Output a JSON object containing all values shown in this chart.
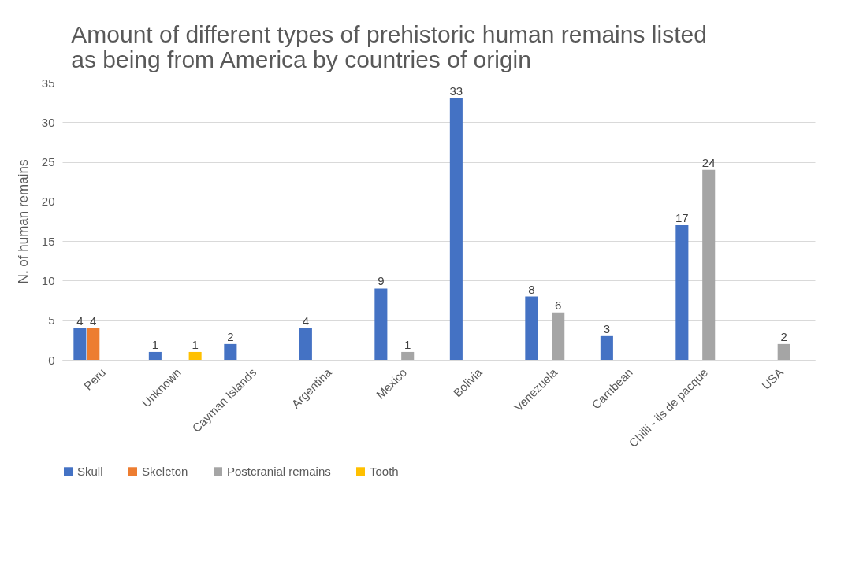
{
  "chart_data": {
    "type": "bar",
    "title": "Amount of different types of prehistoric human remains listed as being from America by countries of origin",
    "ylabel": "N. of human remains",
    "categories": [
      "Peru",
      "Unknown",
      "Cayman Islands",
      "Argentina",
      "Mexico",
      "Bolivia",
      "Venezuela",
      "Carribean",
      "Chilli - ils de pacque",
      "USA"
    ],
    "series": [
      {
        "name": "Skull",
        "color": "#4472c4",
        "values": [
          4,
          1,
          2,
          4,
          9,
          33,
          8,
          3,
          17,
          null
        ]
      },
      {
        "name": "Skeleton",
        "color": "#ed7d31",
        "values": [
          4,
          null,
          null,
          null,
          null,
          null,
          null,
          null,
          null,
          null
        ]
      },
      {
        "name": "Postcranial remains",
        "color": "#a5a5a5",
        "values": [
          null,
          null,
          null,
          null,
          1,
          null,
          6,
          null,
          24,
          2
        ]
      },
      {
        "name": "Tooth",
        "color": "#ffc000",
        "values": [
          null,
          1,
          null,
          null,
          null,
          null,
          null,
          null,
          null,
          null
        ]
      }
    ],
    "ylim": [
      0,
      35
    ],
    "yticks": [
      0,
      5,
      10,
      15,
      20,
      25,
      30,
      35
    ],
    "grid": "y",
    "legend": "bottom",
    "data_labels": true
  }
}
